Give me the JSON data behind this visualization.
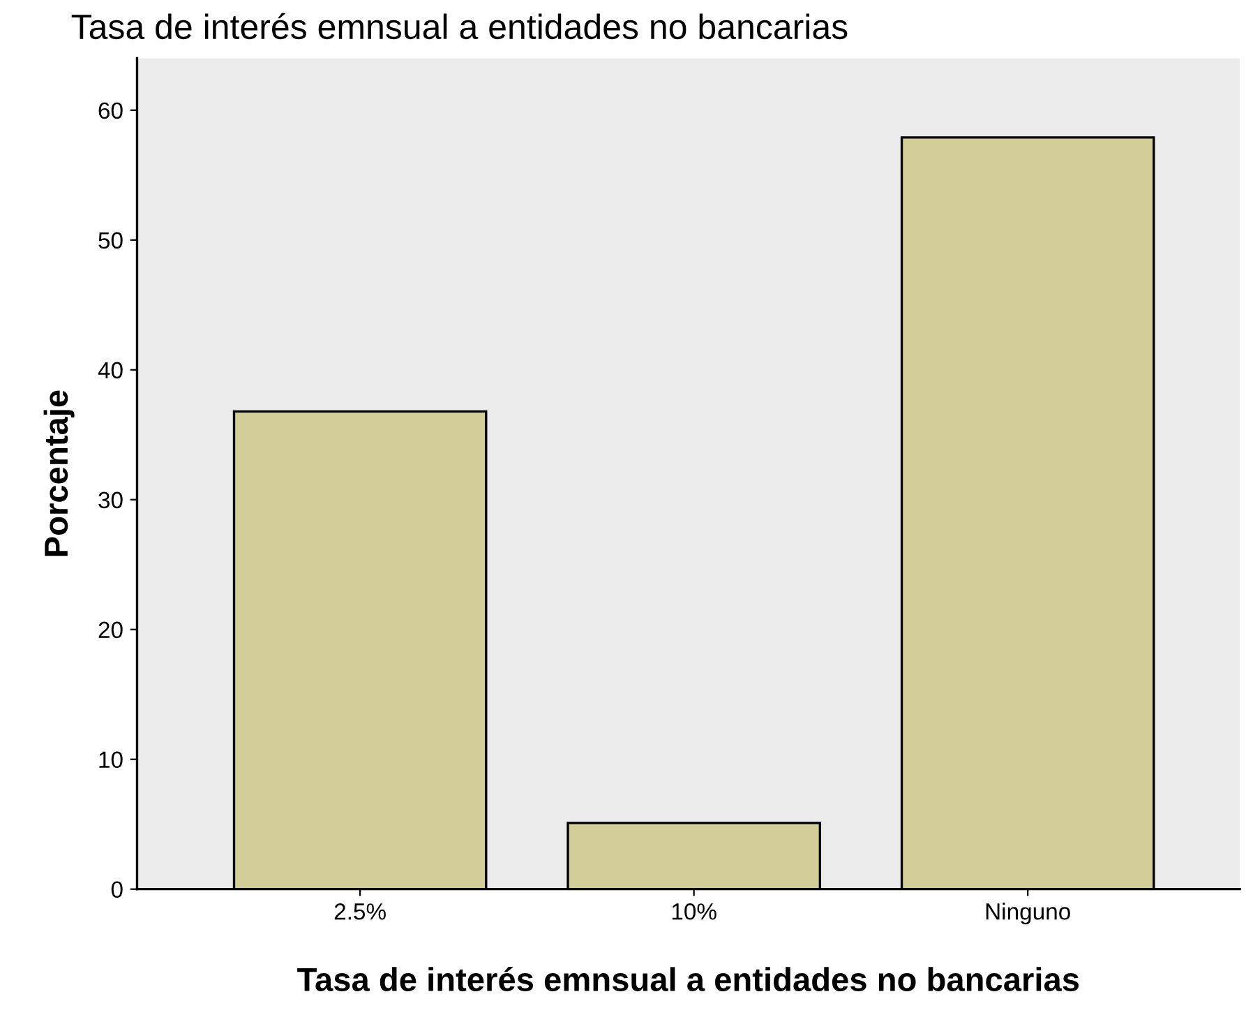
{
  "chart_data": {
    "type": "bar",
    "title": "Tasa de interés emnsual a entidades no bancarias",
    "xlabel": "Tasa de interés emnsual a entidades no bancarias",
    "ylabel": "Porcentaje",
    "categories": [
      "2.5%",
      "10%",
      "Ninguno"
    ],
    "values": [
      36.8,
      5.1,
      57.9
    ],
    "color": "#d3ce97",
    "ylim": [
      0,
      64
    ],
    "yticks": [
      0,
      10,
      20,
      30,
      40,
      50,
      60
    ],
    "grid": false
  }
}
